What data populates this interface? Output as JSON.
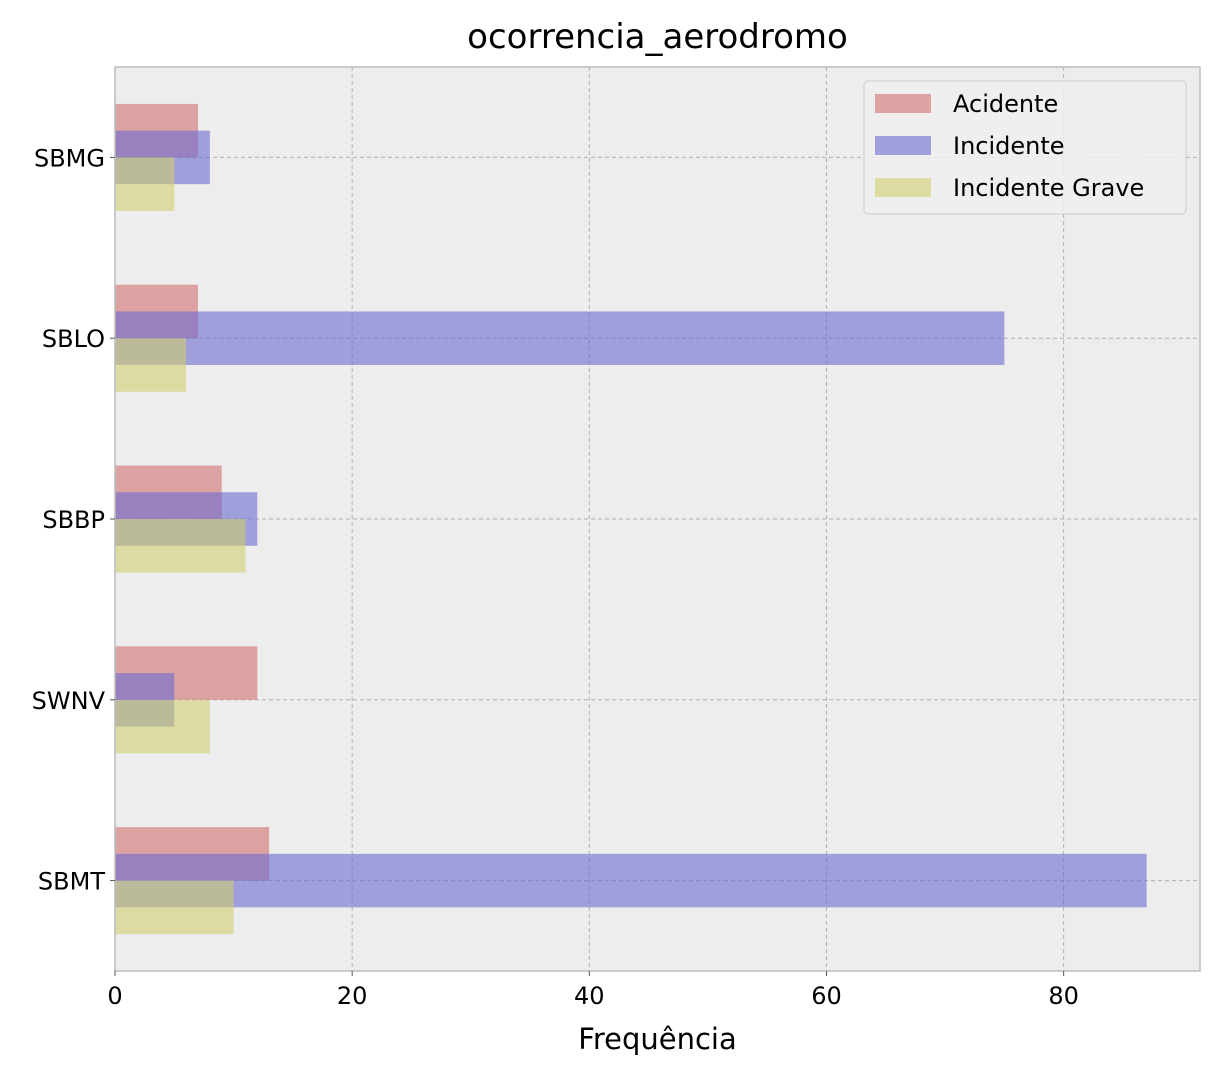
{
  "chart_data": {
    "type": "bar",
    "orientation": "horizontal",
    "title": "ocorrencia_aerodromo",
    "xlabel": "Frequência",
    "ylabel": "",
    "xlim": [
      0,
      91.5
    ],
    "xticks": [
      0,
      20,
      40,
      60,
      80
    ],
    "grid": true,
    "legend_position": "top-right",
    "categories": [
      "SBMG",
      "SBLO",
      "SBBP",
      "SWNV",
      "SBMT"
    ],
    "series": [
      {
        "name": "Acidente",
        "color": "#d07070",
        "values": [
          7,
          7,
          9,
          12,
          13
        ]
      },
      {
        "name": "Incidente",
        "color": "#6a6ad0",
        "values": [
          8,
          75,
          12,
          5,
          87
        ]
      },
      {
        "name": "Incidente Grave",
        "color": "#cfcf70",
        "values": [
          5,
          6,
          11,
          8,
          10
        ]
      }
    ]
  }
}
